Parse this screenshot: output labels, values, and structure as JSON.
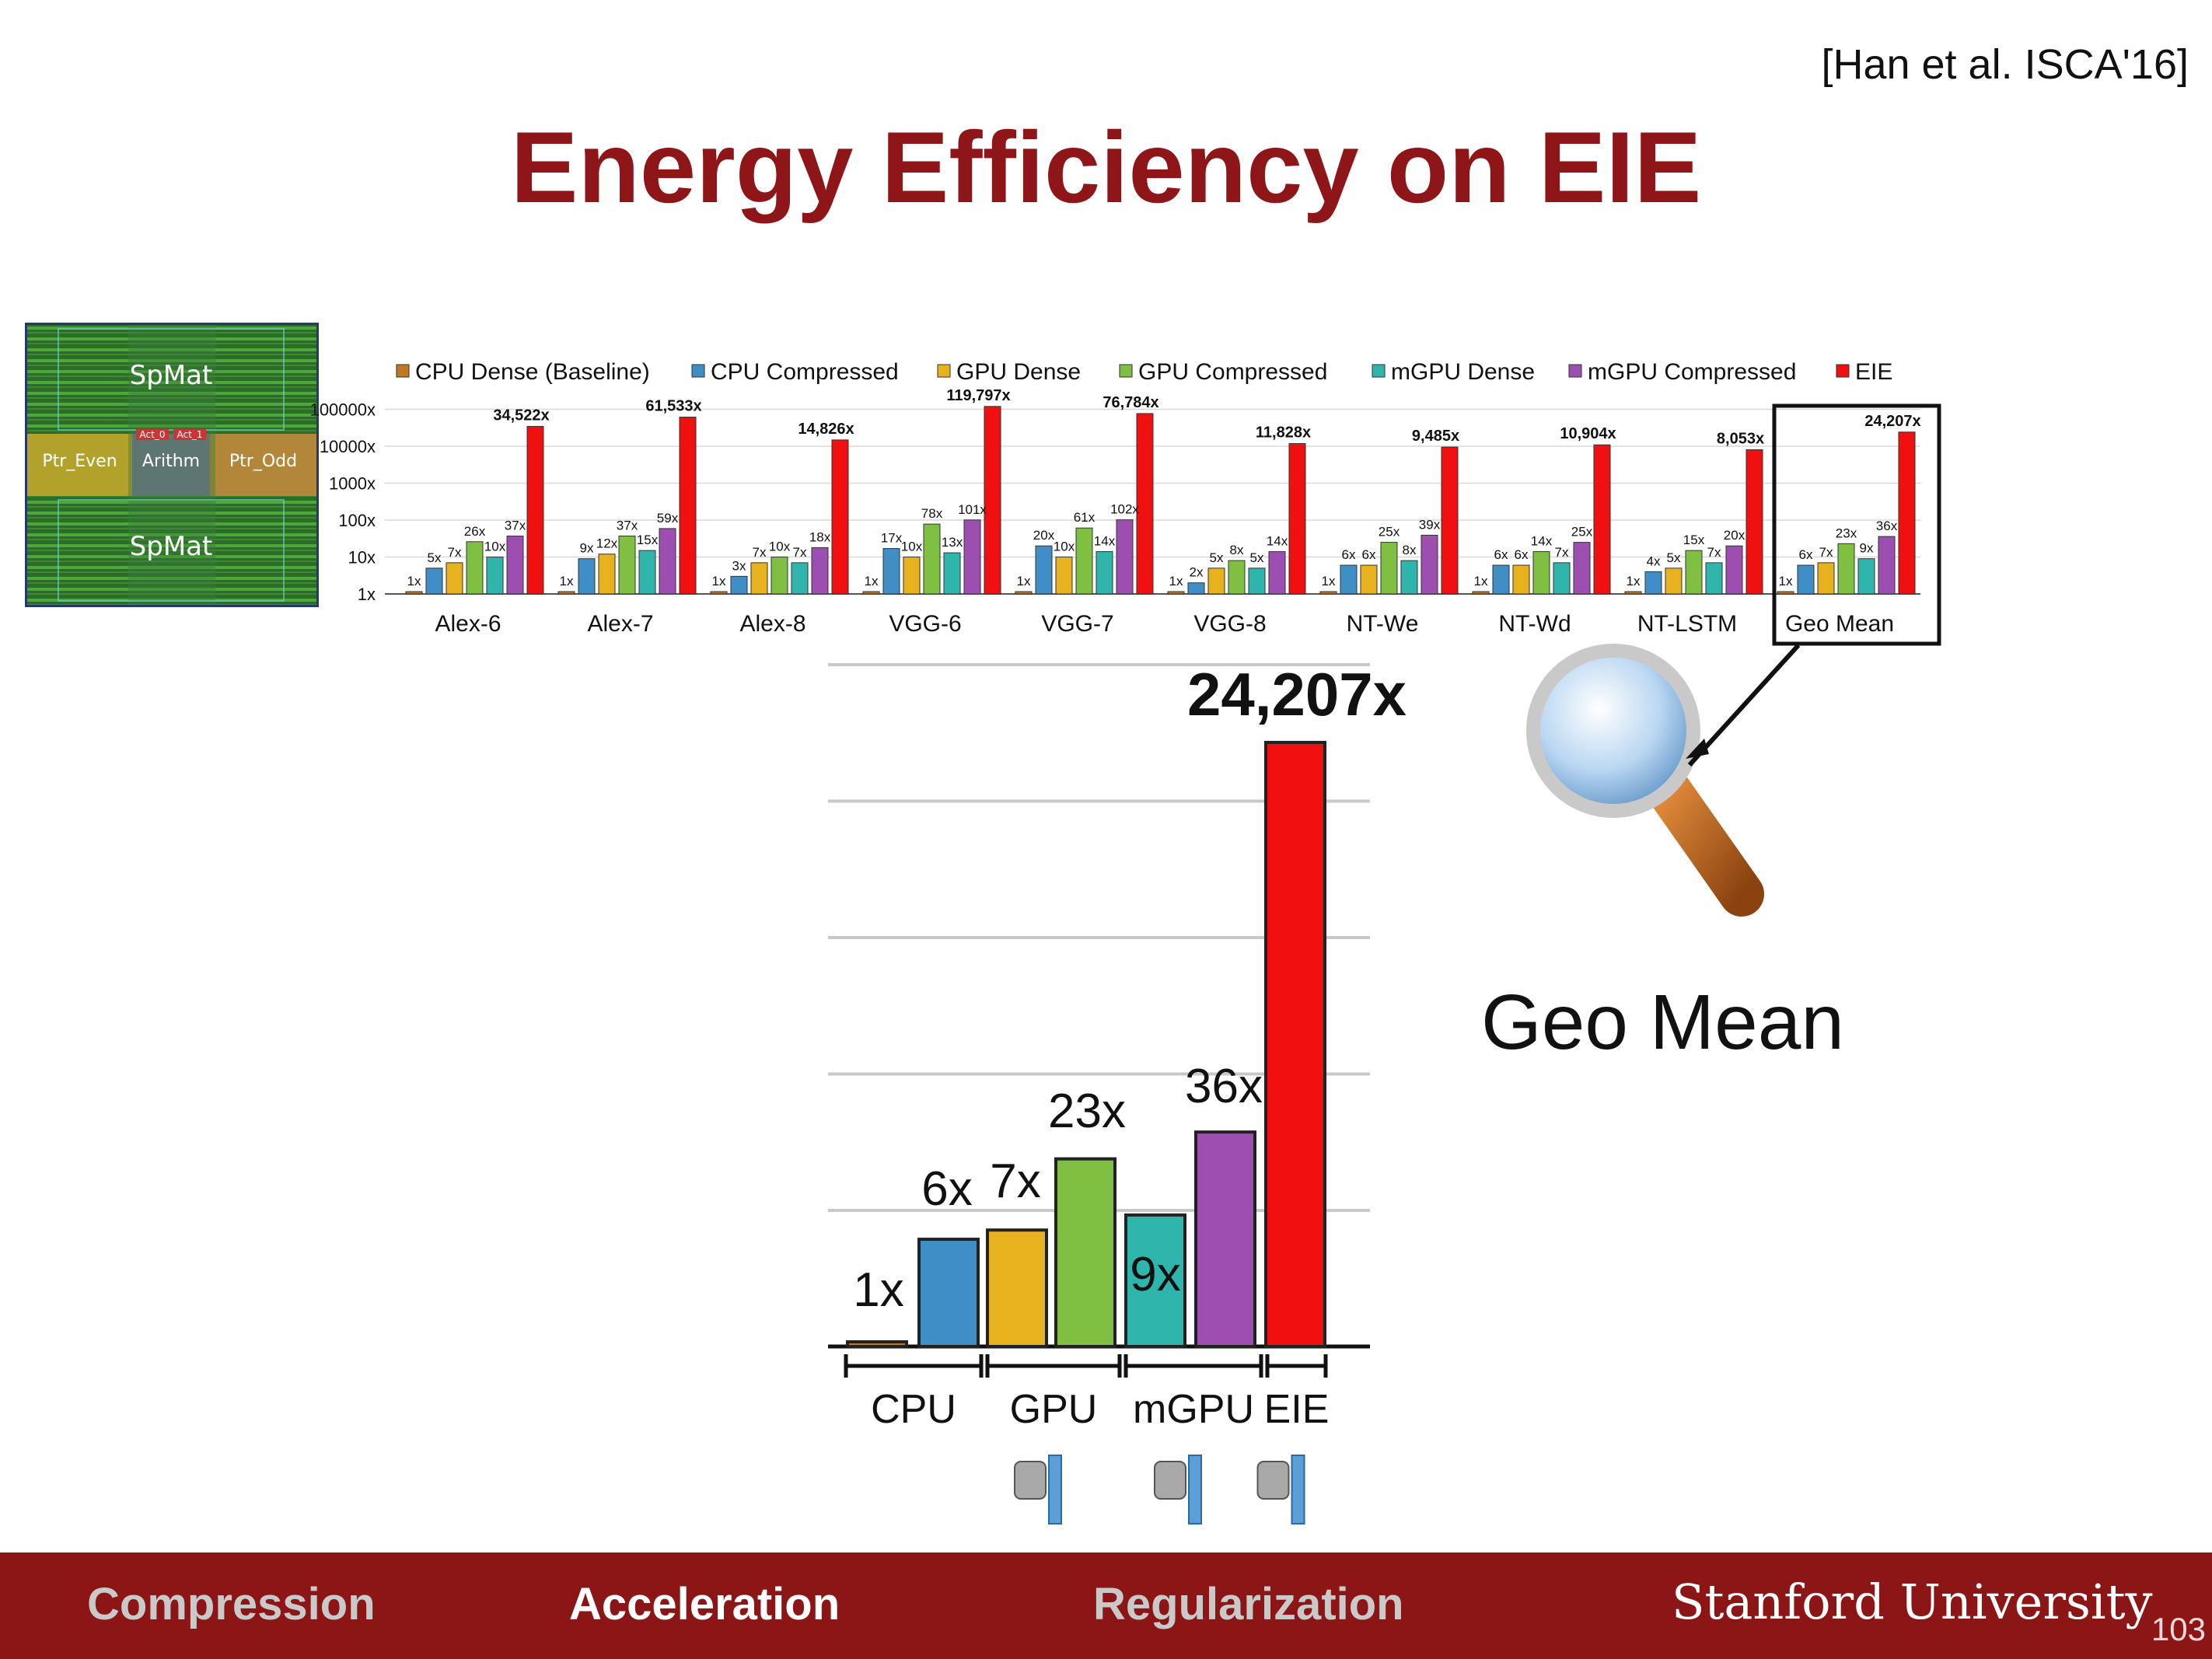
{
  "citation": "[Han et al. ISCA'16]",
  "title": "Energy Efficiency on EIE",
  "chip": {
    "labels": [
      "SpMat",
      "Ptr_Even",
      "Arithm",
      "Ptr_Odd",
      "SpMat",
      "Act_0",
      "Act_1"
    ]
  },
  "geo_mean_label": "Geo Mean",
  "footer": {
    "nav": [
      "Compression",
      "Acceleration",
      "Regularization"
    ],
    "university": "Stanford University",
    "page": "103"
  },
  "colors": {
    "brand": "#8c1515",
    "title": "#8e1518",
    "series": [
      "#c0771f",
      "#3f8fc6",
      "#e8b21e",
      "#7fc043",
      "#2fb5ac",
      "#9c4fb0",
      "#f01010"
    ]
  },
  "chart_data": [
    {
      "type": "bar",
      "log_scale": true,
      "y_tick_labels": [
        "1x",
        "10x",
        "100x",
        "1000x",
        "10000x",
        "100000x"
      ],
      "grid": true,
      "legend_position": "top",
      "categories": [
        "Alex-6",
        "Alex-7",
        "Alex-8",
        "VGG-6",
        "VGG-7",
        "VGG-8",
        "NT-We",
        "NT-Wd",
        "NT-LSTM",
        "Geo Mean"
      ],
      "series": [
        {
          "name": "CPU Dense (Baseline)",
          "values": [
            1,
            1,
            1,
            1,
            1,
            1,
            1,
            1,
            1,
            1
          ]
        },
        {
          "name": "CPU Compressed",
          "values": [
            5,
            9,
            3,
            17,
            20,
            2,
            6,
            6,
            4,
            6
          ]
        },
        {
          "name": "GPU Dense",
          "values": [
            7,
            12,
            7,
            10,
            10,
            5,
            6,
            6,
            5,
            7
          ]
        },
        {
          "name": "GPU Compressed",
          "values": [
            26,
            37,
            10,
            78,
            61,
            8,
            25,
            14,
            15,
            23
          ]
        },
        {
          "name": "mGPU Dense",
          "values": [
            10,
            15,
            7,
            13,
            14,
            5,
            8,
            7,
            7,
            9
          ]
        },
        {
          "name": "mGPU Compressed",
          "values": [
            37,
            59,
            18,
            101,
            102,
            14,
            39,
            25,
            20,
            36
          ]
        },
        {
          "name": "EIE",
          "values": [
            34522,
            61533,
            14826,
            119797,
            76784,
            11828,
            9485,
            10904,
            8053,
            24207
          ]
        }
      ],
      "value_labels": [
        [
          "1x",
          "5x",
          "7x",
          "26x",
          "10x",
          "37x",
          "34,522x"
        ],
        [
          "1x",
          "9x",
          "12x",
          "37x",
          "15x",
          "59x",
          "61,533x"
        ],
        [
          "1x",
          "3x",
          "7x",
          "10x",
          "7x",
          "18x",
          "14,826x"
        ],
        [
          "1x",
          "17x",
          "10x",
          "78x",
          "13x",
          "101x",
          "119,797x"
        ],
        [
          "1x",
          "20x",
          "10x",
          "61x",
          "14x",
          "102x",
          "76,784x"
        ],
        [
          "1x",
          "2x",
          "5x",
          "8x",
          "5x",
          "14x",
          "11,828x"
        ],
        [
          "1x",
          "6x",
          "6x",
          "25x",
          "8x",
          "39x",
          "9,485x"
        ],
        [
          "1x",
          "6x",
          "6x",
          "14x",
          "7x",
          "25x",
          "10,904x"
        ],
        [
          "1x",
          "4x",
          "5x",
          "15x",
          "7x",
          "20x",
          "8,053x"
        ],
        [
          "1x",
          "6x",
          "7x",
          "23x",
          "9x",
          "36x",
          "24,207x"
        ]
      ]
    },
    {
      "type": "bar",
      "subtitle": "Geo Mean",
      "bars": [
        {
          "label": "1x",
          "value": 1
        },
        {
          "label": "6x",
          "value": 6
        },
        {
          "label": "7x",
          "value": 7
        },
        {
          "label": "23x",
          "value": 23
        },
        {
          "label": "9x",
          "value": 9
        },
        {
          "label": "36x",
          "value": 36
        },
        {
          "label": "24,207x",
          "value": 24207
        }
      ],
      "groups": [
        "CPU",
        "GPU",
        "mGPU",
        "EIE"
      ],
      "grid": true
    }
  ]
}
